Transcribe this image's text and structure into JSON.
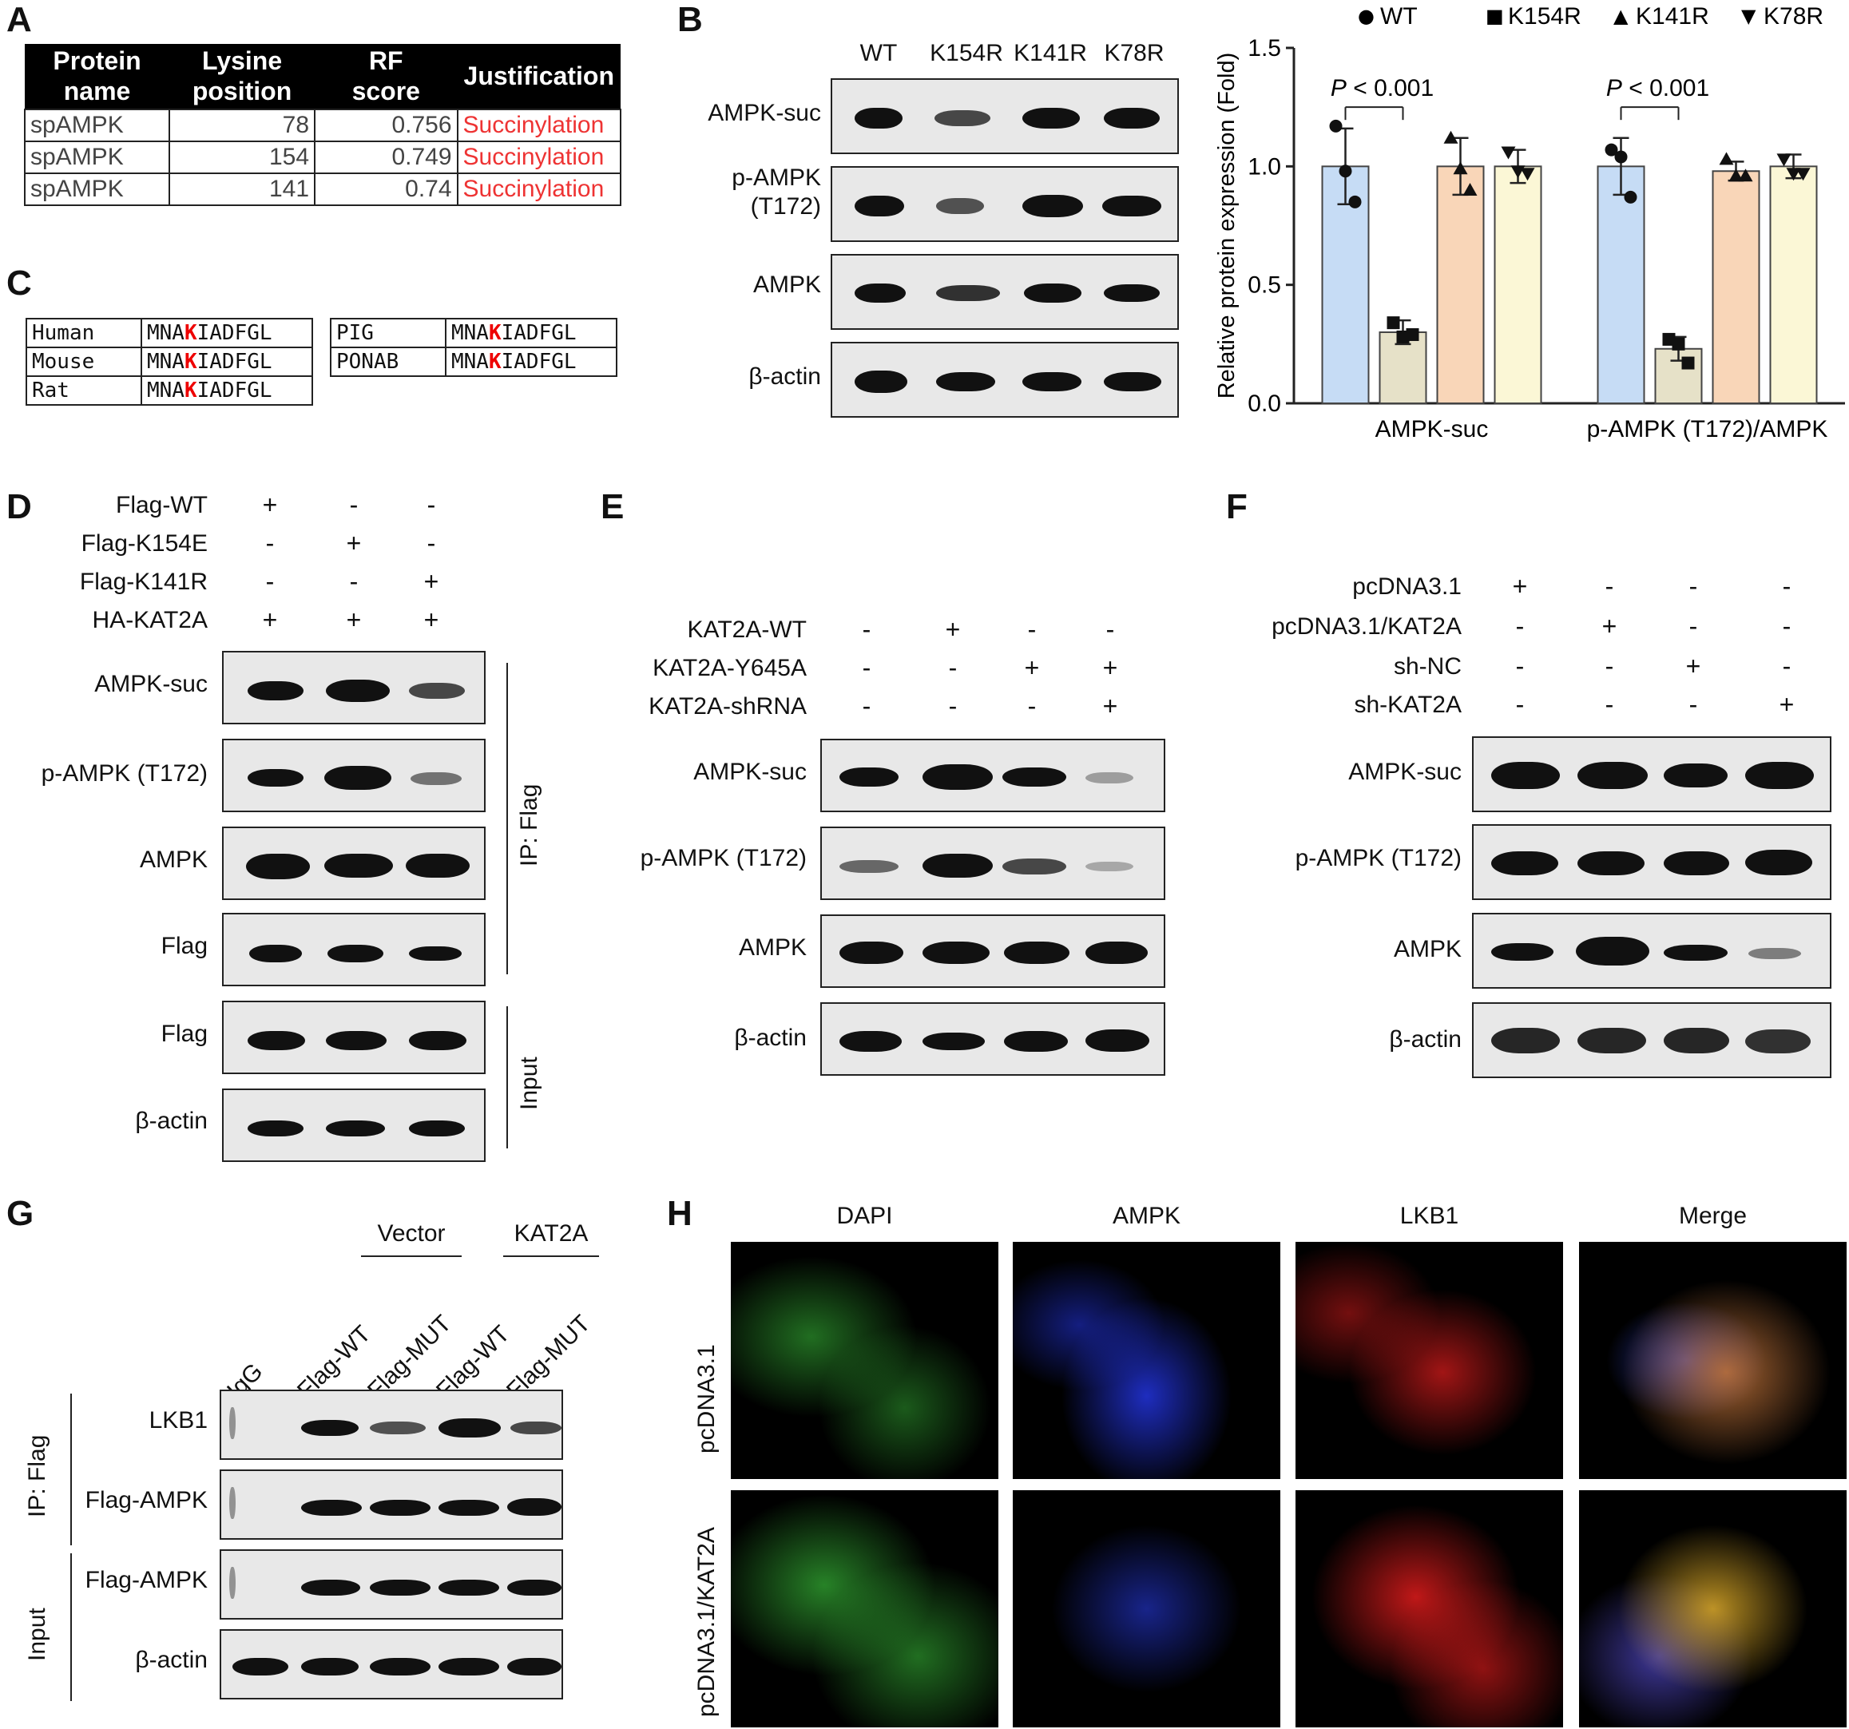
{
  "panels": {
    "A": "A",
    "B": "B",
    "C": "C",
    "D": "D",
    "E": "E",
    "F": "F",
    "G": "G",
    "H": "H"
  },
  "tableA": {
    "headers": [
      "Protein\nname",
      "Lysine\nposition",
      "RF\nscore",
      "Justification"
    ],
    "rows": [
      [
        "spAMPK",
        "78",
        "0.756",
        "Succinylation"
      ],
      [
        "spAMPK",
        "154",
        "0.749",
        "Succinylation"
      ],
      [
        "spAMPK",
        "141",
        "0.74",
        "Succinylation"
      ]
    ]
  },
  "seqC": {
    "left": [
      {
        "species": "Human",
        "pre": "MNA",
        "k": "K",
        "post": "IADFGL"
      },
      {
        "species": "Mouse",
        "pre": "MNA",
        "k": "K",
        "post": "IADFGL"
      },
      {
        "species": "Rat",
        "pre": "MNA",
        "k": "K",
        "post": "IADFGL"
      }
    ],
    "right": [
      {
        "species": "PIG",
        "pre": "MNA",
        "k": "K",
        "post": "IADFGL"
      },
      {
        "species": "PONAB",
        "pre": "MNA",
        "k": "K",
        "post": "IADFGL"
      }
    ]
  },
  "blotB": {
    "lanes": [
      "WT",
      "K154R",
      "K141R",
      "K78R"
    ],
    "rows": [
      "AMPK-suc",
      "p-AMPK\n(T172)",
      "AMPK",
      "β-actin"
    ]
  },
  "chart_data": {
    "type": "bar",
    "ylabel": "Relative protein expression (Fold)",
    "ylim": [
      0,
      1.5
    ],
    "yticks": [
      "0.0",
      "0.5",
      "1.0",
      "1.5"
    ],
    "categories": [
      "AMPK-suc",
      "p-AMPK (T172)/AMPK"
    ],
    "series": [
      {
        "name": "WT",
        "marker": "●",
        "color": "#c6dcf5",
        "values": [
          1.0,
          1.0
        ],
        "err": [
          0.16,
          0.12
        ],
        "points": [
          [
            1.17,
            0.98,
            0.85
          ],
          [
            1.07,
            1.04,
            0.87
          ]
        ]
      },
      {
        "name": "K154R",
        "marker": "■",
        "color": "#e6e1c8",
        "values": [
          0.3,
          0.23
        ],
        "err": [
          0.05,
          0.05
        ],
        "points": [
          [
            0.34,
            0.28,
            0.29
          ],
          [
            0.27,
            0.25,
            0.17
          ]
        ]
      },
      {
        "name": "K141R",
        "marker": "▲",
        "color": "#f9d6b8",
        "values": [
          1.0,
          0.98
        ],
        "err": [
          0.12,
          0.04
        ],
        "points": [
          [
            1.12,
            0.99,
            0.9
          ],
          [
            1.03,
            0.96,
            0.96
          ]
        ]
      },
      {
        "name": "K78R",
        "marker": "▼",
        "color": "#fbf7d6",
        "values": [
          1.0,
          1.0
        ],
        "err": [
          0.07,
          0.05
        ],
        "points": [
          [
            1.06,
            0.98,
            0.97
          ],
          [
            1.03,
            0.97,
            0.97
          ]
        ]
      }
    ],
    "annotations": [
      "P < 0.001",
      "P < 0.001"
    ],
    "legend_position": "top"
  },
  "panelD": {
    "conditions": [
      {
        "label": "Flag-WT",
        "signs": [
          "+",
          "-",
          "-"
        ]
      },
      {
        "label": "Flag-K154E",
        "signs": [
          "-",
          "+",
          "-"
        ]
      },
      {
        "label": "Flag-K141R",
        "signs": [
          "-",
          "-",
          "+"
        ]
      },
      {
        "label": "HA-KAT2A",
        "signs": [
          "+",
          "+",
          "+"
        ]
      }
    ],
    "rows": [
      "AMPK-suc",
      "p-AMPK (T172)",
      "AMPK",
      "Flag",
      "Flag",
      "β-actin"
    ],
    "ip_label": "IP: Flag",
    "input_label": "Input"
  },
  "panelE": {
    "conditions": [
      {
        "label": "KAT2A-WT",
        "signs": [
          "-",
          "+",
          "-",
          "-"
        ]
      },
      {
        "label": "KAT2A-Y645A",
        "signs": [
          "-",
          "-",
          "+",
          "+"
        ]
      },
      {
        "label": "KAT2A-shRNA",
        "signs": [
          "-",
          "-",
          "-",
          "+"
        ]
      }
    ],
    "rows": [
      "AMPK-suc",
      "p-AMPK (T172)",
      "AMPK",
      "β-actin"
    ]
  },
  "panelF": {
    "conditions": [
      {
        "label": "pcDNA3.1",
        "signs": [
          "+",
          "-",
          "-",
          "-"
        ]
      },
      {
        "label": "pcDNA3.1/KAT2A",
        "signs": [
          "-",
          "+",
          "-",
          "-"
        ]
      },
      {
        "label": "sh-NC",
        "signs": [
          "-",
          "-",
          "+",
          "-"
        ]
      },
      {
        "label": "sh-KAT2A",
        "signs": [
          "-",
          "-",
          "-",
          "+"
        ]
      }
    ],
    "rows": [
      "AMPK-suc",
      "p-AMPK (T172)",
      "AMPK",
      "β-actin"
    ]
  },
  "panelG": {
    "groups": [
      "Vector",
      "KAT2A"
    ],
    "lanes": [
      "IgG",
      "Flag-WT",
      "Flag-MUT",
      "Flag-WT",
      "Flag-MUT"
    ],
    "rows": [
      "LKB1",
      "Flag-AMPK",
      "Flag-AMPK",
      "β-actin"
    ],
    "ip_label": "IP: Flag",
    "input_label": "Input"
  },
  "panelH": {
    "columns": [
      "DAPI",
      "AMPK",
      "LKB1",
      "Merge"
    ],
    "rows": [
      "pcDNA3.1",
      "pcDNA3.1/KAT2A"
    ]
  }
}
